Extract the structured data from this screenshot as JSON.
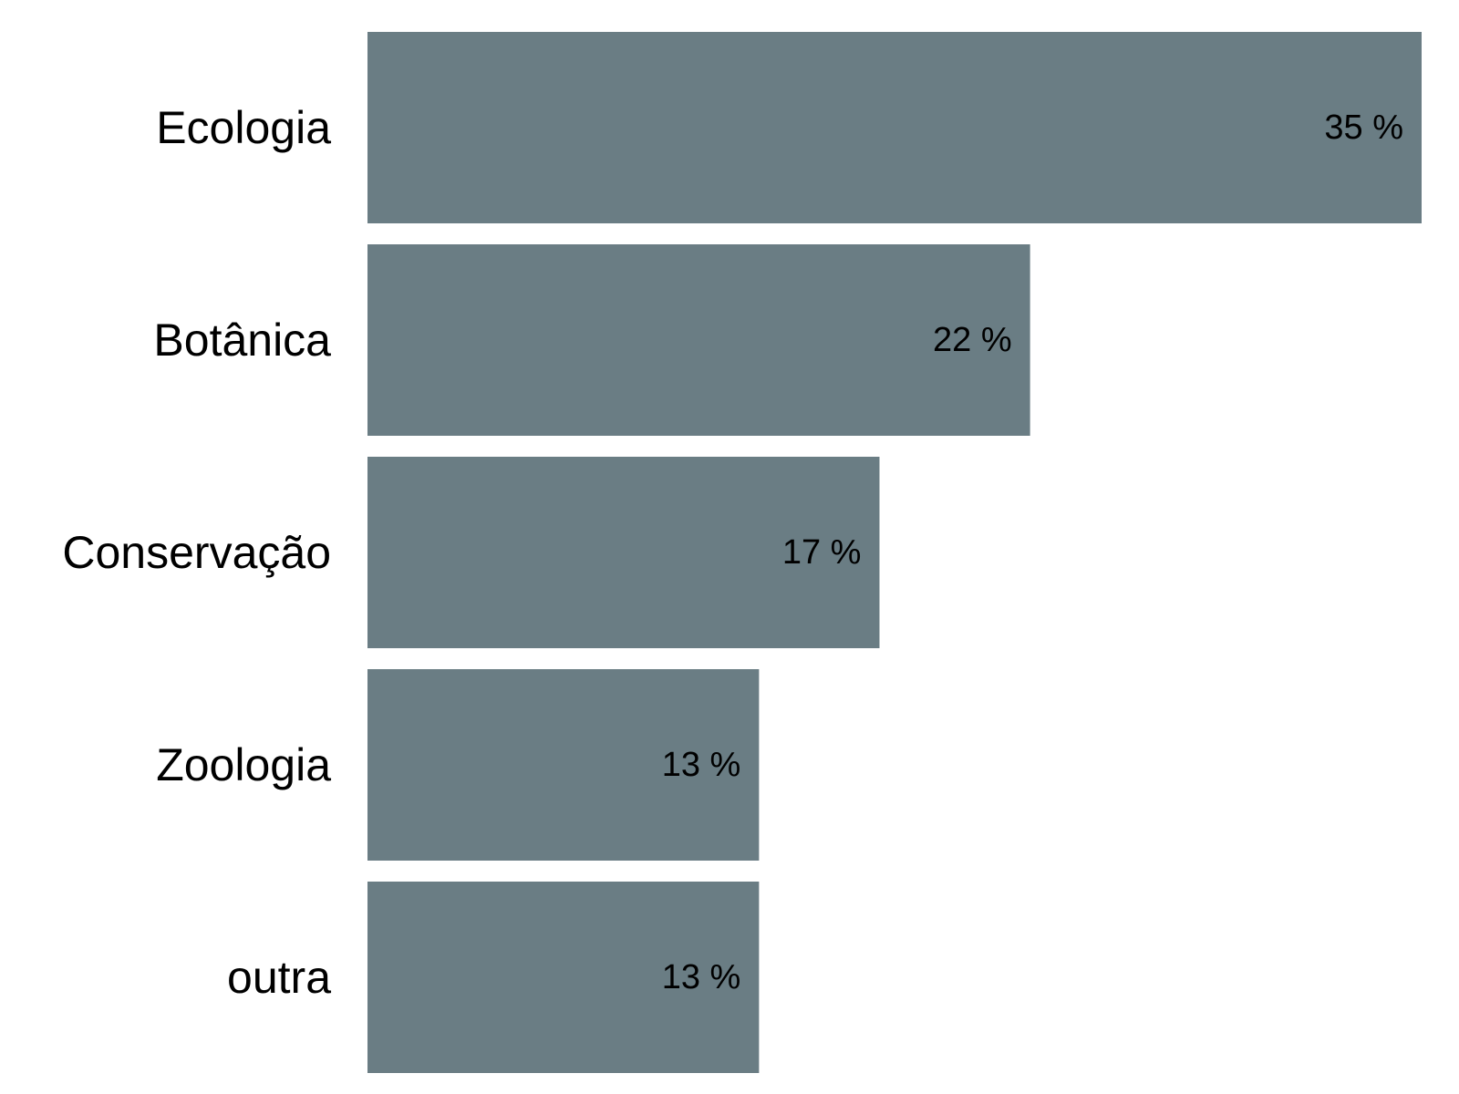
{
  "colors": {
    "bar": "#6a7d84",
    "background": "#ffffff",
    "text": "#000000"
  },
  "chart_data": {
    "type": "bar",
    "orientation": "horizontal",
    "title": "",
    "xlabel": "",
    "ylabel": "",
    "grid": false,
    "legend": "none",
    "xlim": [
      0,
      35
    ],
    "categories": [
      "Ecologia",
      "Botânica",
      "Conservação",
      "Zoologia",
      "outra"
    ],
    "values": [
      35,
      22,
      17,
      13,
      13
    ],
    "value_labels": [
      "35 %",
      "22 %",
      "17 %",
      "13 %",
      "13 %"
    ]
  }
}
